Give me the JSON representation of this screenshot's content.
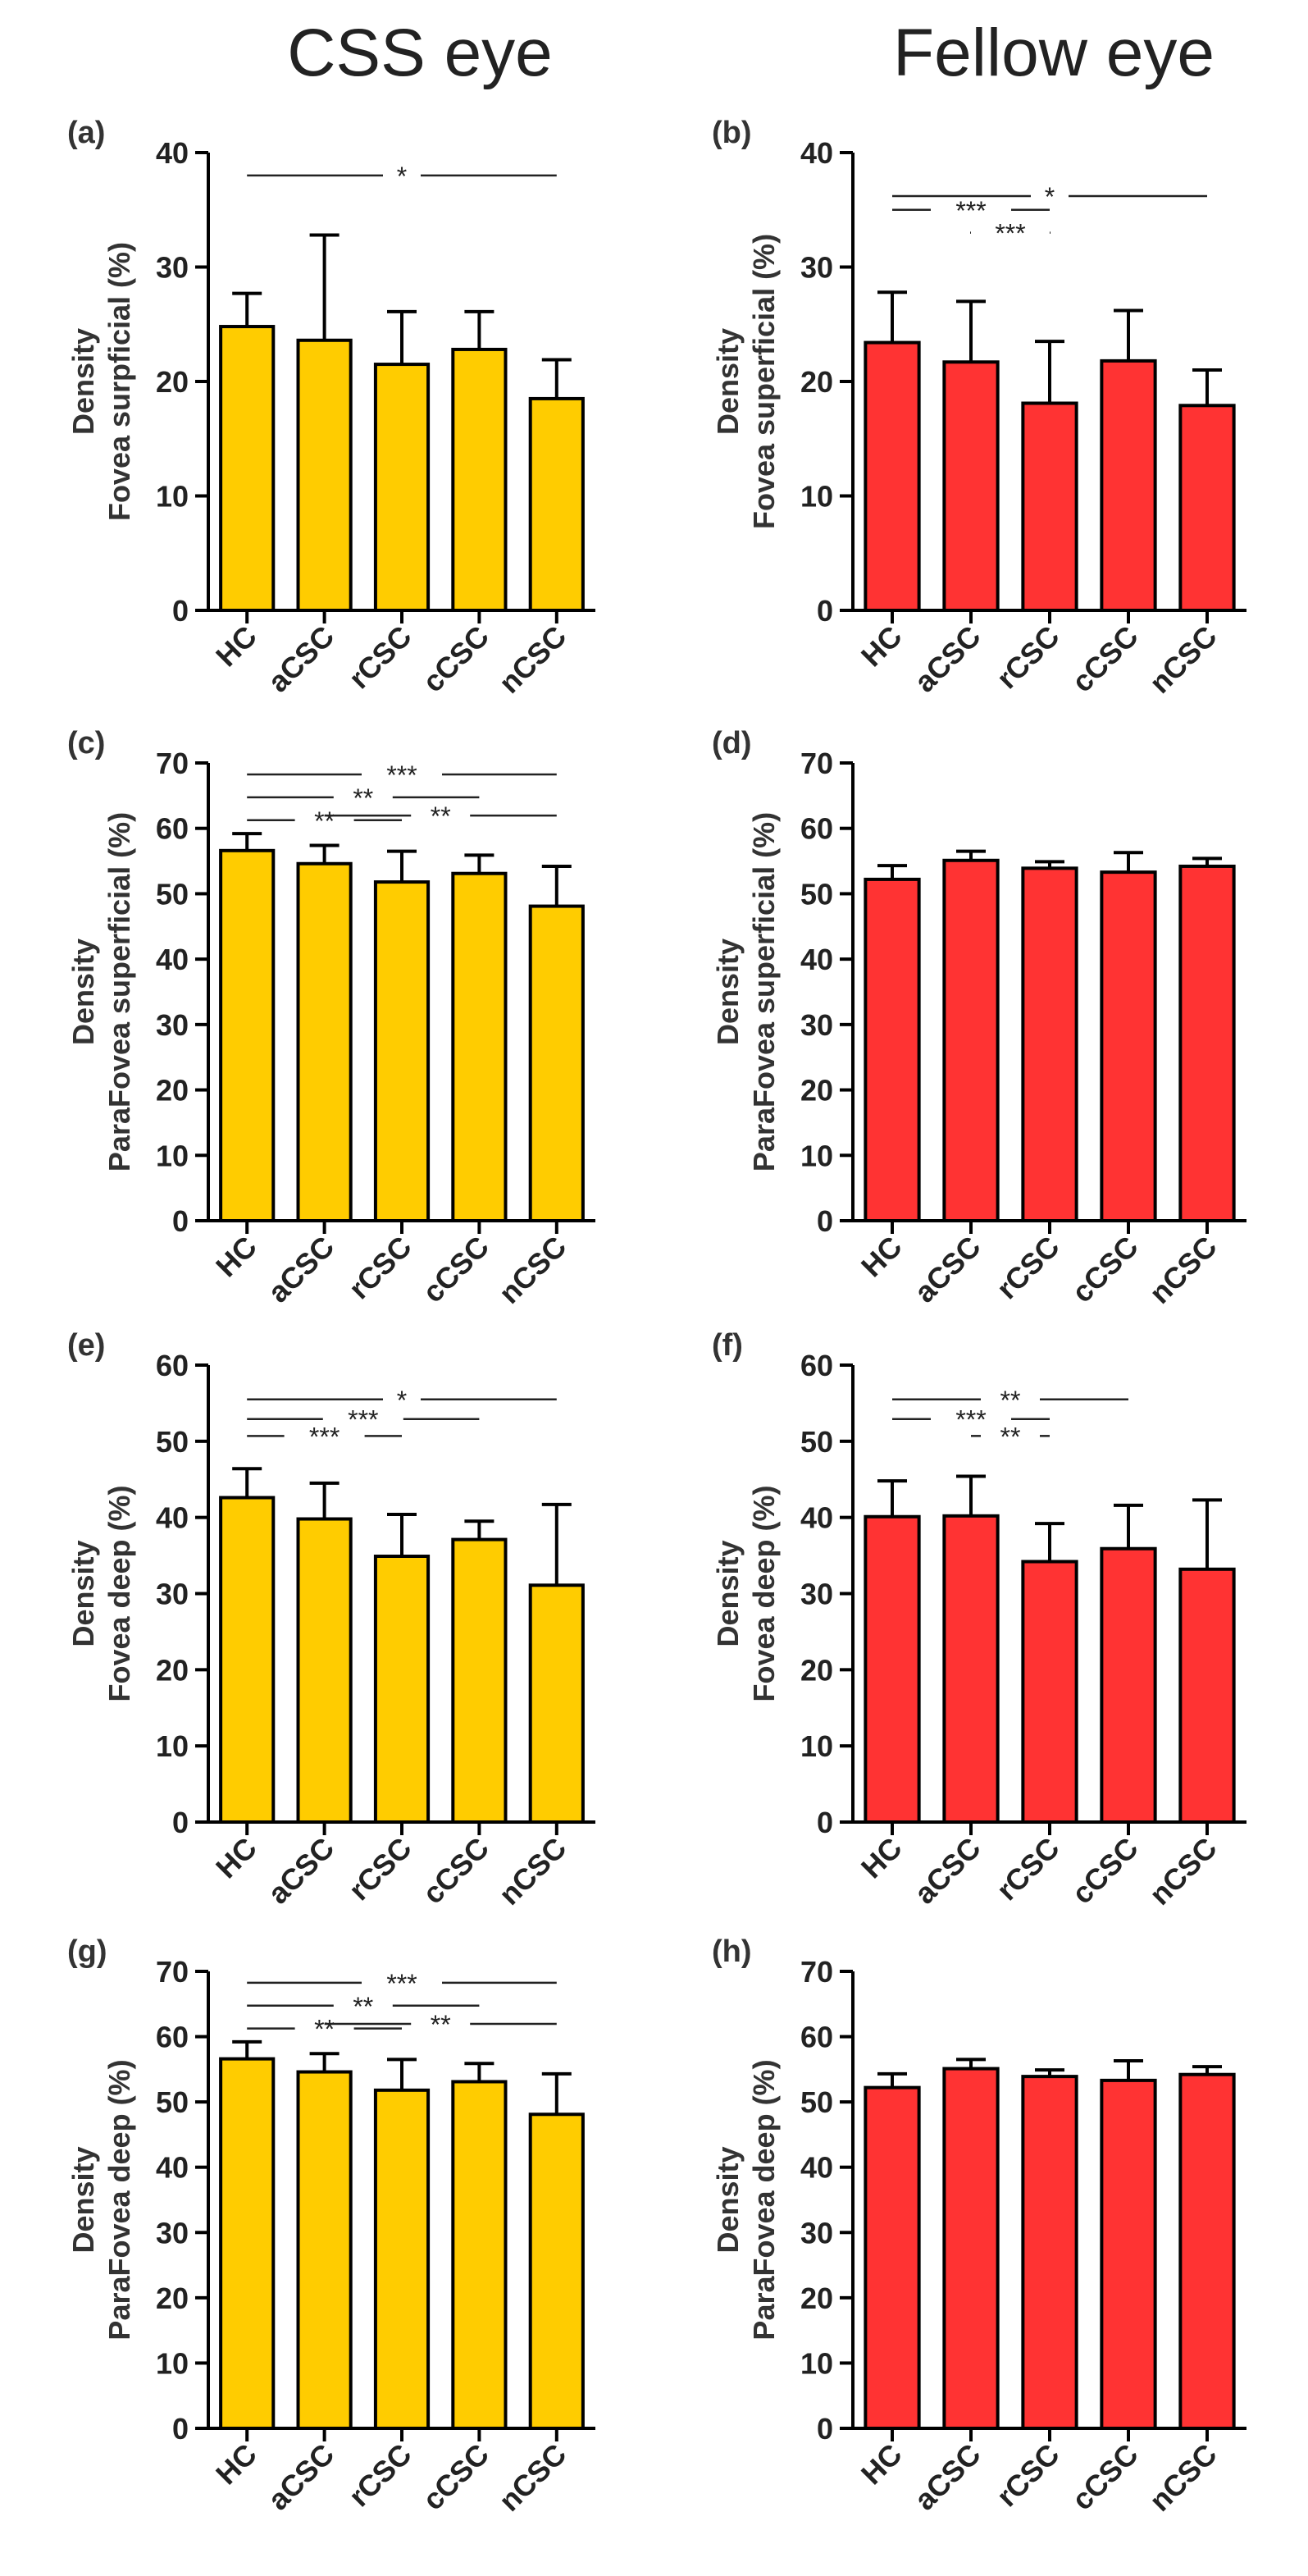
{
  "column_titles": [
    "CSS eye",
    "Fellow eye"
  ],
  "colors": {
    "css": "#FFCC00",
    "fellow": "#FF3333",
    "stroke": "#000000"
  },
  "chart_data": [
    {
      "panel": "(a)",
      "type": "bar",
      "ylabel": [
        "Density",
        "Fovea surpficial (%)"
      ],
      "categories": [
        "HC",
        "aCSC",
        "rCSC",
        "cCSC",
        "nCSC"
      ],
      "values": [
        24.8,
        23.6,
        21.5,
        22.8,
        18.5
      ],
      "errors": [
        2.9,
        9.2,
        4.6,
        3.3,
        3.4
      ],
      "ylim": [
        0,
        40
      ],
      "yticks": [
        "0",
        "10",
        "20",
        "30",
        "40"
      ],
      "color": "#FFCC00",
      "significance": [
        {
          "from": 0,
          "to": 4,
          "label": "*"
        }
      ]
    },
    {
      "panel": "(b)",
      "type": "bar",
      "ylabel": [
        "Density",
        "Fovea superficial (%)"
      ],
      "categories": [
        "HC",
        "aCSC",
        "rCSC",
        "cCSC",
        "nCSC"
      ],
      "values": [
        23.4,
        21.7,
        18.1,
        21.8,
        17.9
      ],
      "errors": [
        4.4,
        5.3,
        5.4,
        4.4,
        3.1
      ],
      "ylim": [
        0,
        40
      ],
      "yticks": [
        "0",
        "10",
        "20",
        "30",
        "40"
      ],
      "color": "#FF3333",
      "significance": [
        {
          "from": 0,
          "to": 4,
          "label": "*"
        },
        {
          "from": 0,
          "to": 2,
          "label": "***"
        },
        {
          "from": 1,
          "to": 2,
          "label": "***"
        }
      ]
    },
    {
      "panel": "(c)",
      "type": "bar",
      "ylabel": [
        "Density",
        "ParaFovea superficial (%)"
      ],
      "categories": [
        "HC",
        "aCSC",
        "rCSC",
        "cCSC",
        "nCSC"
      ],
      "values": [
        56.6,
        54.6,
        51.8,
        53.1,
        48.1
      ],
      "errors": [
        2.6,
        2.8,
        4.7,
        2.8,
        6.1
      ],
      "ylim": [
        0,
        70
      ],
      "yticks": [
        "0",
        "10",
        "20",
        "30",
        "40",
        "50",
        "60",
        "70"
      ],
      "color": "#FFCC00",
      "significance": [
        {
          "from": 0,
          "to": 4,
          "label": "***"
        },
        {
          "from": 0,
          "to": 3,
          "label": "**"
        },
        {
          "from": 0,
          "to": 2,
          "label": "**"
        },
        {
          "from": 1,
          "to": 4,
          "label": "**"
        }
      ]
    },
    {
      "panel": "(d)",
      "type": "bar",
      "ylabel": [
        "Density",
        "ParaFovea superficial (%)"
      ],
      "categories": [
        "HC",
        "aCSC",
        "rCSC",
        "cCSC",
        "nCSC"
      ],
      "values": [
        52.2,
        55.1,
        53.9,
        53.3,
        54.2
      ],
      "errors": [
        2.1,
        1.4,
        1.0,
        3.0,
        1.2
      ],
      "ylim": [
        0,
        70
      ],
      "yticks": [
        "0",
        "10",
        "20",
        "30",
        "40",
        "50",
        "60",
        "70"
      ],
      "color": "#FF3333",
      "significance": []
    },
    {
      "panel": "(e)",
      "type": "bar",
      "ylabel": [
        "Density",
        "Fovea deep (%)"
      ],
      "categories": [
        "HC",
        "aCSC",
        "rCSC",
        "cCSC",
        "nCSC"
      ],
      "values": [
        42.6,
        39.8,
        34.9,
        37.1,
        31.1
      ],
      "errors": [
        3.8,
        4.7,
        5.5,
        2.4,
        10.6
      ],
      "ylim": [
        0,
        60
      ],
      "yticks": [
        "0",
        "10",
        "20",
        "30",
        "40",
        "50",
        "60"
      ],
      "color": "#FFCC00",
      "significance": [
        {
          "from": 0,
          "to": 4,
          "label": "*"
        },
        {
          "from": 0,
          "to": 3,
          "label": "***"
        },
        {
          "from": 0,
          "to": 2,
          "label": "***"
        }
      ]
    },
    {
      "panel": "(f)",
      "type": "bar",
      "ylabel": [
        "Density",
        "Fovea deep (%)"
      ],
      "categories": [
        "HC",
        "aCSC",
        "rCSC",
        "cCSC",
        "nCSC"
      ],
      "values": [
        40.1,
        40.2,
        34.2,
        35.9,
        33.2
      ],
      "errors": [
        4.7,
        5.2,
        5.0,
        5.7,
        9.1
      ],
      "ylim": [
        0,
        60
      ],
      "yticks": [
        "0",
        "10",
        "20",
        "30",
        "40",
        "50",
        "60"
      ],
      "color": "#FF3333",
      "significance": [
        {
          "from": 0,
          "to": 3,
          "label": "**"
        },
        {
          "from": 0,
          "to": 2,
          "label": "***"
        },
        {
          "from": 1,
          "to": 2,
          "label": "**"
        }
      ]
    },
    {
      "panel": "(g)",
      "type": "bar",
      "ylabel": [
        "Density",
        "ParaFovea deep (%)"
      ],
      "categories": [
        "HC",
        "aCSC",
        "rCSC",
        "cCSC",
        "nCSC"
      ],
      "values": [
        56.6,
        54.6,
        51.8,
        53.1,
        48.1
      ],
      "errors": [
        2.6,
        2.8,
        4.7,
        2.8,
        6.2
      ],
      "ylim": [
        0,
        70
      ],
      "yticks": [
        "0",
        "10",
        "20",
        "30",
        "40",
        "50",
        "60",
        "70"
      ],
      "color": "#FFCC00",
      "significance": [
        {
          "from": 0,
          "to": 4,
          "label": "***"
        },
        {
          "from": 0,
          "to": 3,
          "label": "**"
        },
        {
          "from": 0,
          "to": 2,
          "label": "**"
        },
        {
          "from": 1,
          "to": 4,
          "label": "**"
        }
      ]
    },
    {
      "panel": "(h)",
      "type": "bar",
      "ylabel": [
        "Density",
        "ParaFovea deep (%)"
      ],
      "categories": [
        "HC",
        "aCSC",
        "rCSC",
        "cCSC",
        "nCSC"
      ],
      "values": [
        52.2,
        55.1,
        53.9,
        53.3,
        54.2
      ],
      "errors": [
        2.1,
        1.4,
        1.0,
        3.0,
        1.2
      ],
      "ylim": [
        0,
        70
      ],
      "yticks": [
        "0",
        "10",
        "20",
        "30",
        "40",
        "50",
        "60",
        "70"
      ],
      "color": "#FF3333",
      "significance": []
    }
  ]
}
